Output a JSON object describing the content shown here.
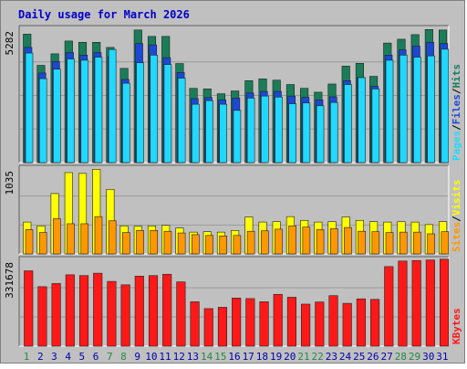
{
  "title": "Daily usage for March 2026",
  "colors": {
    "title": "#0000cc",
    "background": "#c0c0c0",
    "hits": "#1a7d5a",
    "files": "#1c48d6",
    "pages": "#21d8ff",
    "visits": "#ffff00",
    "sites": "#ff9800",
    "kbytes": "#ff1818",
    "day_normal": "#0000aa",
    "day_weekend": "#228844"
  },
  "panels": {
    "top": {
      "max_label": "5282",
      "legend": [
        "Pages",
        "Files",
        "Hits"
      ]
    },
    "middle": {
      "max_label": "1035",
      "legend": [
        "Sites",
        "Visits"
      ]
    },
    "bottom": {
      "max_label": "331678",
      "legend": [
        "KBytes"
      ]
    }
  },
  "chart_data": {
    "type": "bar",
    "title": "Daily usage for March 2026",
    "categories": [
      "1",
      "2",
      "3",
      "4",
      "5",
      "6",
      "7",
      "8",
      "9",
      "10",
      "11",
      "12",
      "13",
      "14",
      "15",
      "16",
      "17",
      "18",
      "19",
      "20",
      "21",
      "22",
      "23",
      "24",
      "25",
      "26",
      "27",
      "28",
      "29",
      "30",
      "31"
    ],
    "weekend_days": [
      "1",
      "7",
      "8",
      "14",
      "15",
      "21",
      "22",
      "28",
      "29"
    ],
    "panels": [
      {
        "name": "top",
        "ymax": 5282,
        "series": [
          {
            "name": "Hits",
            "values": [
              5020,
              3800,
              4250,
              4750,
              4700,
              4700,
              4500,
              3680,
              5180,
              4930,
              4930,
              3870,
              2900,
              2880,
              2690,
              2800,
              3200,
              3270,
              3220,
              3050,
              2900,
              2750,
              3070,
              3770,
              3880,
              3370,
              4670,
              4820,
              5000,
              5200,
              5180
            ]
          },
          {
            "name": "Files",
            "values": [
              4500,
              3500,
              3950,
              4300,
              4200,
              4300,
              4150,
              3250,
              4650,
              4600,
              4100,
              3520,
              2500,
              2540,
              2450,
              2520,
              2720,
              2780,
              2780,
              2600,
              2550,
              2450,
              2570,
              3200,
              3320,
              2980,
              4200,
              4400,
              4550,
              4700,
              4650
            ]
          },
          {
            "name": "Pages",
            "values": [
              4280,
              3280,
              3650,
              4050,
              4000,
              4120,
              4420,
              3100,
              3900,
              4200,
              3830,
              3300,
              2280,
              2420,
              2280,
              2040,
              2520,
              2600,
              2560,
              2300,
              2330,
              2220,
              2350,
              3050,
              3320,
              2880,
              4000,
              4200,
              4120,
              4170,
              4430
            ]
          }
        ]
      },
      {
        "name": "middle",
        "ymax": 1035,
        "series": [
          {
            "name": "Visits",
            "values": [
              380,
              335,
              720,
              970,
              960,
              1010,
              770,
              335,
              330,
              335,
              340,
              310,
              260,
              265,
              260,
              280,
              440,
              380,
              385,
              445,
              400,
              380,
              385,
              440,
              400,
              385,
              380,
              385,
              380,
              350,
              385
            ]
          },
          {
            "name": "Sites",
            "values": [
              290,
              255,
              420,
              360,
              360,
              445,
              395,
              255,
              280,
              280,
              270,
              250,
              230,
              220,
              215,
              220,
              270,
              275,
              295,
              335,
              320,
              290,
              300,
              315,
              270,
              265,
              255,
              260,
              260,
              240,
              265
            ]
          }
        ]
      },
      {
        "name": "bottom",
        "ymax": 331678,
        "series": [
          {
            "name": "KBytes",
            "values": [
              285000,
              225000,
              237000,
              270000,
              267000,
              276000,
              245000,
              232000,
              265000,
              267000,
              272000,
              243000,
              168000,
              142000,
              147000,
              182000,
              180000,
              168000,
              196000,
              185000,
              159000,
              167000,
              191000,
              162000,
              179000,
              177000,
              301000,
              322000,
              324000,
              326000,
              329000
            ]
          }
        ]
      }
    ]
  }
}
